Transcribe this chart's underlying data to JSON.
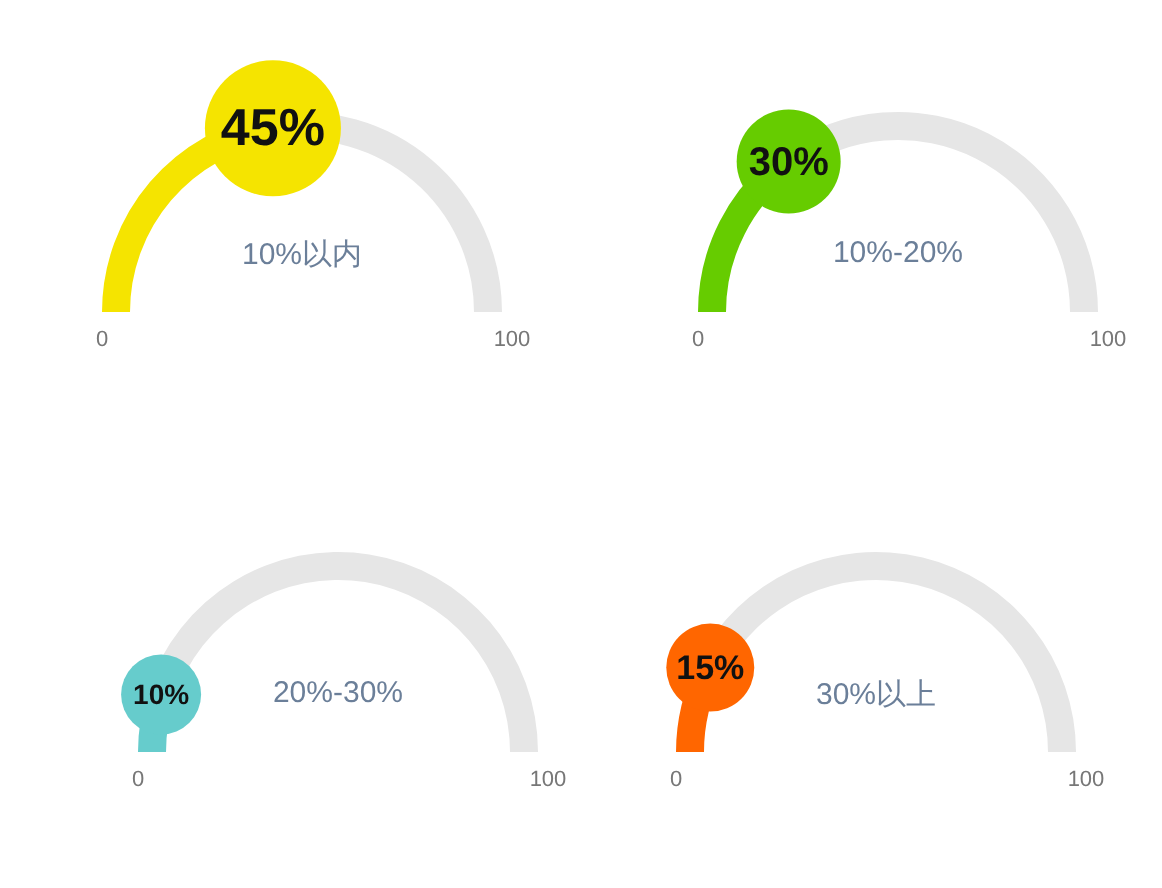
{
  "chart_data": [
    {
      "type": "donut",
      "title": "10%以内",
      "categories": [
        null,
        null
      ],
      "values": [
        45,
        55
      ],
      "colors": [
        "#f5e400",
        "#e6e6e6"
      ],
      "value_labels": [
        "45%",
        null
      ],
      "annotations": [
        "0",
        "100"
      ]
    },
    {
      "type": "donut",
      "title": "10%-20%",
      "categories": [
        null,
        null
      ],
      "values": [
        30,
        70
      ],
      "colors": [
        "#66cc00",
        "#e6e6e6"
      ],
      "value_labels": [
        "30%",
        null
      ],
      "annotations": [
        "0",
        "100"
      ]
    },
    {
      "type": "donut",
      "title": "20%-30%",
      "categories": [
        null,
        null
      ],
      "values": [
        10,
        90
      ],
      "colors": [
        "#66cccc",
        "#e6e6e6"
      ],
      "value_labels": [
        "10%",
        null
      ],
      "annotations": [
        "0",
        "100"
      ]
    },
    {
      "type": "donut",
      "title": "30%以上",
      "categories": [
        null,
        null
      ],
      "values": [
        15,
        85
      ],
      "colors": [
        "#ff6600",
        "#e6e6e6"
      ],
      "value_labels": [
        "15%",
        null
      ],
      "annotations": [
        "0",
        "100"
      ]
    }
  ]
}
